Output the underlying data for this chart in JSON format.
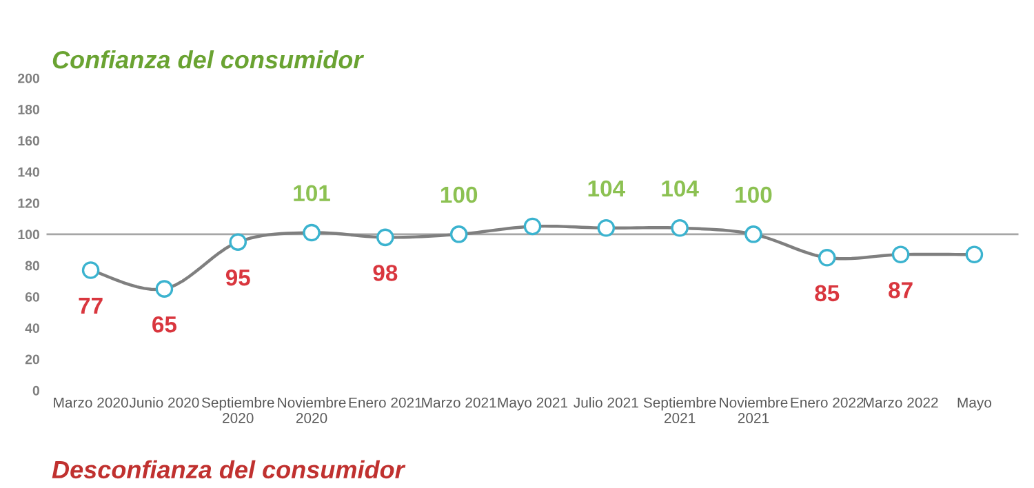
{
  "chart_data": {
    "type": "line",
    "title": "Confianza del consumidor",
    "categories": [
      "Marzo 2020",
      "Junio 2020",
      "Septiembre\n2020",
      "Noviembre\n2020",
      "Enero 2021",
      "Marzo 2021",
      "Mayo 2021",
      "Julio 2021",
      "Septiembre\n2021",
      "Noviembre\n2021",
      "Enero 2022",
      "Marzo 2022",
      "Mayo"
    ],
    "series": [
      {
        "color": "#7f7f7f",
        "values": [
          77,
          65,
          95,
          101,
          98,
          100,
          105,
          104,
          104,
          100,
          85,
          87,
          87
        ],
        "value_labels": [
          "77",
          "65",
          "95",
          "101",
          "98",
          "100",
          null,
          "104",
          "104",
          "100",
          "85",
          "87",
          null
        ]
      }
    ],
    "ylim": [
      0,
      200
    ],
    "yticks": [
      0,
      20,
      40,
      60,
      80,
      100,
      120,
      140,
      160,
      180,
      200
    ],
    "ref_lines": [
      {
        "axis": "y",
        "value": 100,
        "color": "#a6a6a6"
      }
    ],
    "marker": "circle",
    "line_style": "solid",
    "grid": false,
    "legend": false,
    "annotations": [
      "Desconfianza del consumidor"
    ]
  }
}
